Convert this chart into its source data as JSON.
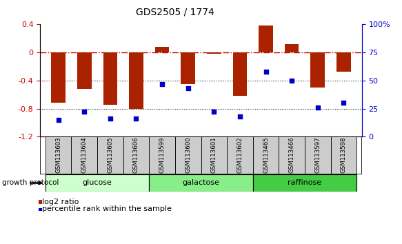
{
  "title": "GDS2505 / 1774",
  "samples": [
    "GSM113603",
    "GSM113604",
    "GSM113605",
    "GSM113606",
    "GSM113599",
    "GSM113600",
    "GSM113601",
    "GSM113602",
    "GSM113465",
    "GSM113466",
    "GSM113597",
    "GSM113598"
  ],
  "log2_ratio": [
    -0.72,
    -0.52,
    -0.75,
    -0.8,
    0.08,
    -0.45,
    -0.02,
    -0.62,
    0.38,
    0.12,
    -0.5,
    -0.27
  ],
  "percentile_rank": [
    15,
    22,
    16,
    16,
    47,
    43,
    22,
    18,
    58,
    50,
    26,
    30
  ],
  "groups": [
    {
      "label": "glucose",
      "start": 0,
      "end": 4,
      "color": "#ccffcc"
    },
    {
      "label": "galactose",
      "start": 4,
      "end": 8,
      "color": "#88ee88"
    },
    {
      "label": "raffinose",
      "start": 8,
      "end": 12,
      "color": "#44cc44"
    }
  ],
  "bar_color": "#aa2200",
  "dot_color": "#0000cc",
  "ylim_left": [
    -1.2,
    0.4
  ],
  "ylim_right": [
    0,
    100
  ],
  "yticks_left": [
    0.4,
    0.0,
    -0.4,
    -0.8,
    -1.2
  ],
  "ytick_labels_left": [
    "0.4",
    "0",
    "-0.4",
    "-0.8",
    "-1.2"
  ],
  "yticks_right": [
    100,
    75,
    50,
    25,
    0
  ],
  "ytick_labels_right": [
    "100%",
    "75",
    "50",
    "25",
    "0"
  ],
  "hline_y": 0.0,
  "dotted_lines": [
    -0.4,
    -0.8
  ],
  "bg_color": "#ffffff",
  "sample_box_color": "#cccccc",
  "bar_width": 0.55
}
